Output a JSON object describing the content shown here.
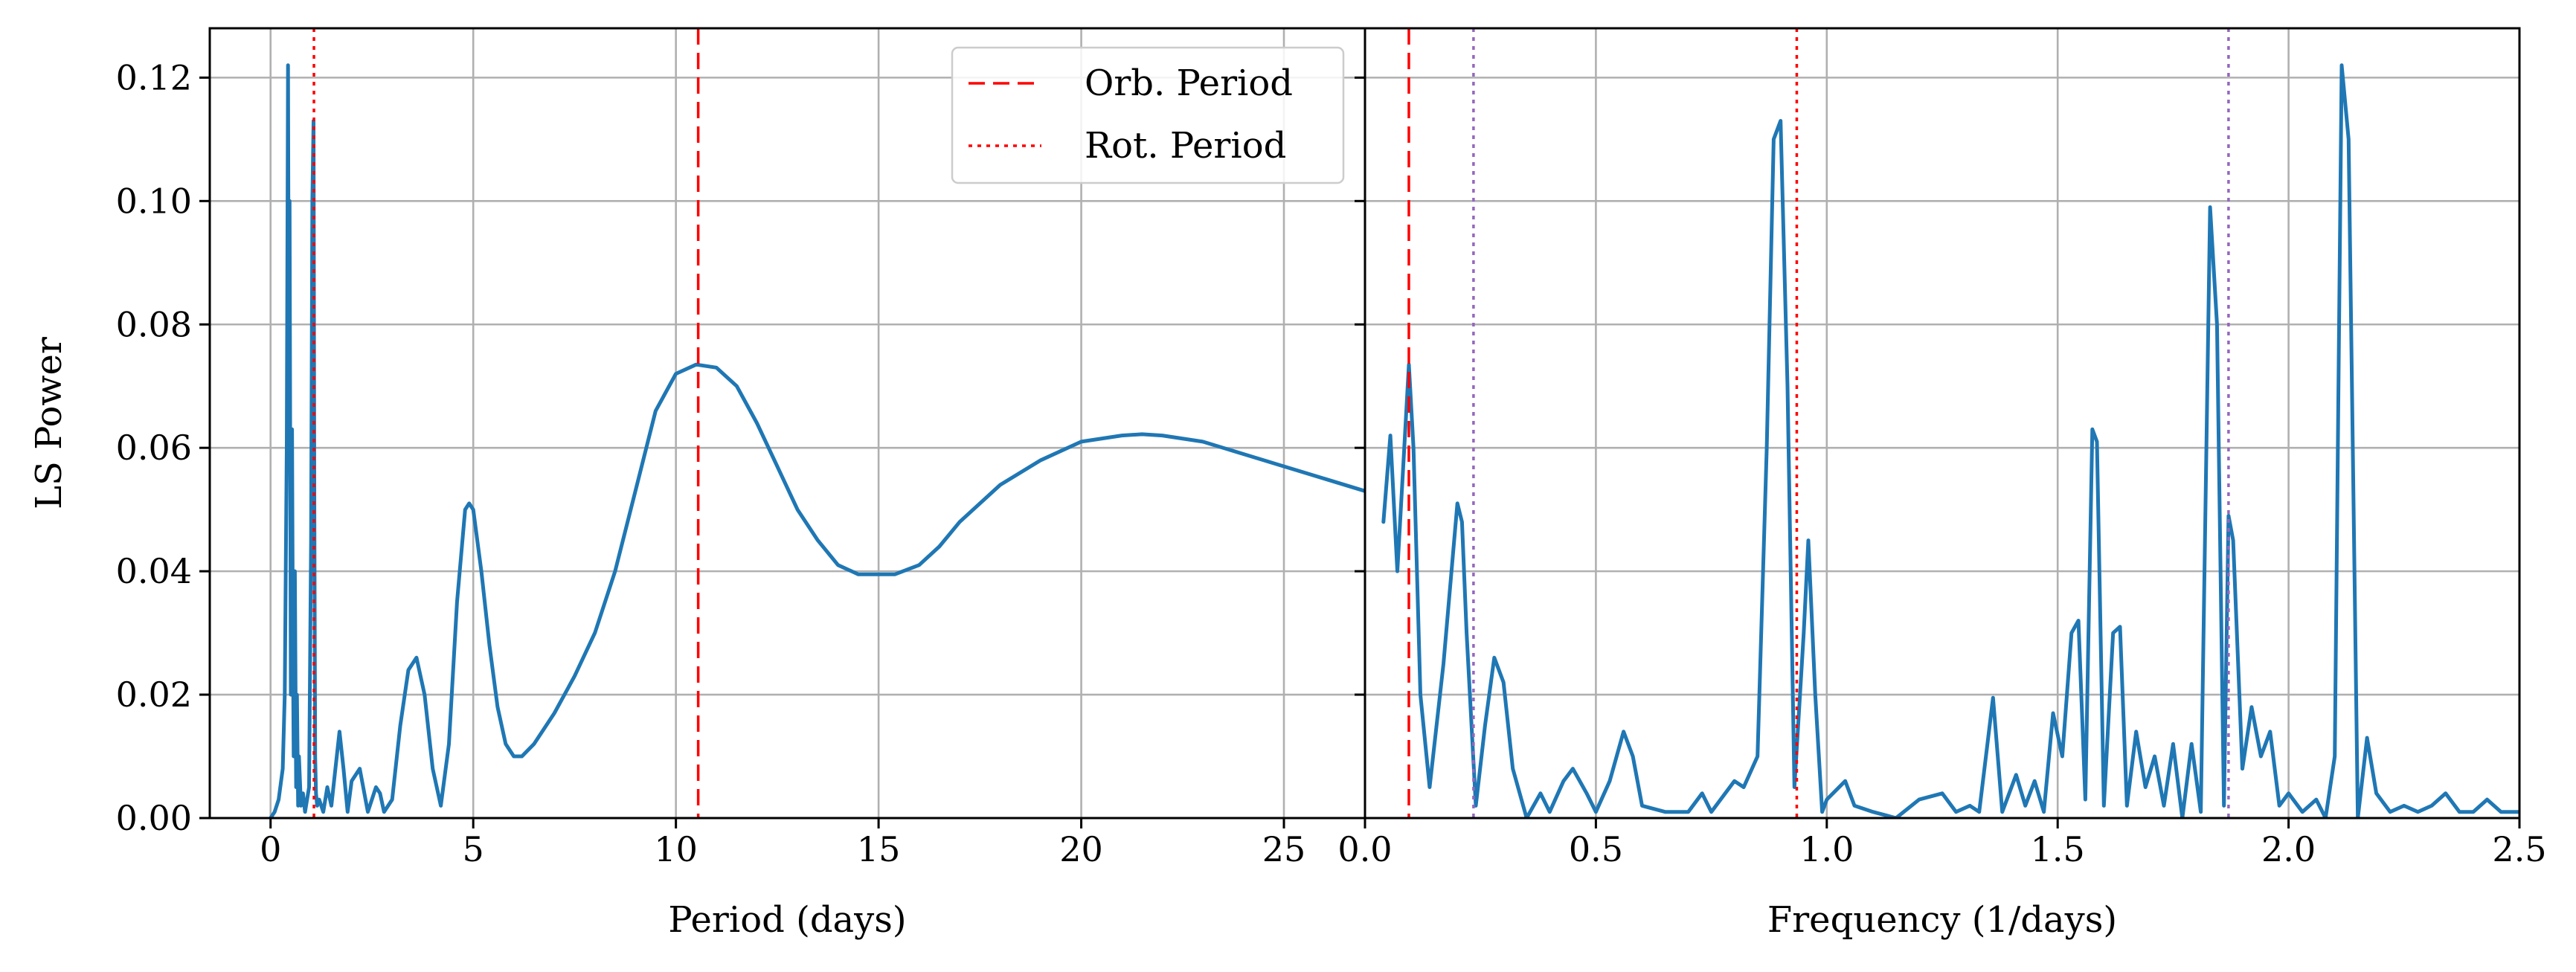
{
  "colors": {
    "series": "#1f77b4",
    "orb_period": "#ff0000",
    "rot_period": "#ff0000",
    "alias_marker": "#9467bd",
    "grid": "#b0b0b0"
  },
  "legend": {
    "placement": "top-right of left panel",
    "items": [
      {
        "label": "Orb. Period",
        "style": "dashed",
        "color": "#ff0000"
      },
      {
        "label": "Rot. Period",
        "style": "dotted",
        "color": "#ff0000"
      }
    ]
  },
  "chart_data": [
    {
      "type": "line",
      "panel": "left",
      "xlabel": "Period (days)",
      "ylabel": "LS Power",
      "xlim": [
        -1.5,
        27
      ],
      "ylim": [
        0,
        0.128
      ],
      "xticks": [
        0,
        5,
        10,
        15,
        20,
        25
      ],
      "xtick_labels": [
        "0",
        "5",
        "10",
        "15",
        "20",
        "25"
      ],
      "yticks": [
        0,
        0.02,
        0.04,
        0.06,
        0.08,
        0.1,
        0.12
      ],
      "ytick_labels": [
        "0.00",
        "0.02",
        "0.04",
        "0.06",
        "0.08",
        "0.10",
        "0.12"
      ],
      "grid": true,
      "vlines": [
        {
          "name": "Orb. Period",
          "x": 10.55,
          "style": "dashed",
          "color": "#ff0000"
        },
        {
          "name": "Rot. Period",
          "x": 1.07,
          "style": "dotted",
          "color": "#ff0000"
        }
      ],
      "series": [
        {
          "x": [
            0.0,
            0.1,
            0.2,
            0.3,
            0.35,
            0.4,
            0.43,
            0.45,
            0.47,
            0.5,
            0.53,
            0.55,
            0.57,
            0.6,
            0.63,
            0.65,
            0.68,
            0.7,
            0.75,
            0.8,
            0.85,
            0.9,
            0.95,
            1.0,
            1.03,
            1.06,
            1.08,
            1.1,
            1.12,
            1.15,
            1.2,
            1.3,
            1.4,
            1.5,
            1.6,
            1.7,
            1.8,
            1.9,
            2.0,
            2.2,
            2.4,
            2.6,
            2.7,
            2.8,
            3.0,
            3.2,
            3.4,
            3.6,
            3.8,
            4.0,
            4.2,
            4.4,
            4.6,
            4.8,
            4.9,
            5.0,
            5.2,
            5.4,
            5.6,
            5.8,
            6.0,
            6.2,
            6.5,
            7.0,
            7.5,
            8.0,
            8.5,
            9.0,
            9.5,
            10.0,
            10.5,
            11.0,
            11.5,
            12.0,
            12.5,
            13.0,
            13.5,
            14.0,
            14.5,
            15.0,
            15.4,
            16.0,
            16.5,
            17.0,
            18.0,
            19.0,
            20.0,
            21.0,
            21.5,
            22.0,
            23.0,
            24.0,
            25.0,
            26.0,
            27.0
          ],
          "y": [
            0.0,
            0.001,
            0.003,
            0.008,
            0.02,
            0.06,
            0.122,
            0.07,
            0.1,
            0.02,
            0.063,
            0.03,
            0.01,
            0.04,
            0.005,
            0.02,
            0.002,
            0.01,
            0.002,
            0.004,
            0.001,
            0.003,
            0.005,
            0.045,
            0.1,
            0.113,
            0.05,
            0.01,
            0.004,
            0.002,
            0.003,
            0.001,
            0.005,
            0.002,
            0.008,
            0.014,
            0.008,
            0.001,
            0.006,
            0.008,
            0.001,
            0.005,
            0.004,
            0.001,
            0.003,
            0.015,
            0.024,
            0.026,
            0.02,
            0.008,
            0.002,
            0.012,
            0.035,
            0.05,
            0.051,
            0.05,
            0.04,
            0.028,
            0.018,
            0.012,
            0.01,
            0.01,
            0.012,
            0.017,
            0.023,
            0.03,
            0.04,
            0.053,
            0.066,
            0.072,
            0.0735,
            0.073,
            0.07,
            0.064,
            0.057,
            0.05,
            0.045,
            0.041,
            0.0395,
            0.0395,
            0.0395,
            0.041,
            0.044,
            0.048,
            0.054,
            0.058,
            0.061,
            0.062,
            0.0622,
            0.062,
            0.061,
            0.059,
            0.057,
            0.055,
            0.053
          ]
        }
      ]
    },
    {
      "type": "line",
      "panel": "right",
      "xlabel": "Frequency (1/days)",
      "ylabel": "",
      "xlim": [
        0,
        2.5
      ],
      "ylim": [
        0,
        0.128
      ],
      "xticks": [
        0,
        0.5,
        1,
        1.5,
        2,
        2.5
      ],
      "xtick_labels": [
        "0.0",
        "0.5",
        "1.0",
        "1.5",
        "2.0",
        "2.5"
      ],
      "yticks": [
        0,
        0.02,
        0.04,
        0.06,
        0.08,
        0.1,
        0.12
      ],
      "grid": true,
      "vlines": [
        {
          "name": "Orb. Period",
          "x": 0.095,
          "style": "dashed",
          "color": "#ff0000"
        },
        {
          "x": 0.235,
          "style": "dotted",
          "color": "#9467bd"
        },
        {
          "name": "Rot. Period",
          "x": 0.935,
          "style": "dotted",
          "color": "#ff0000"
        },
        {
          "x": 1.87,
          "style": "dotted",
          "color": "#9467bd"
        }
      ],
      "series": [
        {
          "x": [
            0.04,
            0.055,
            0.07,
            0.085,
            0.095,
            0.105,
            0.12,
            0.14,
            0.17,
            0.2,
            0.21,
            0.22,
            0.24,
            0.26,
            0.28,
            0.3,
            0.32,
            0.35,
            0.38,
            0.4,
            0.43,
            0.45,
            0.48,
            0.5,
            0.53,
            0.56,
            0.58,
            0.6,
            0.65,
            0.7,
            0.73,
            0.75,
            0.8,
            0.82,
            0.85,
            0.87,
            0.885,
            0.9,
            0.915,
            0.93,
            0.95,
            0.96,
            0.975,
            0.99,
            1.0,
            1.04,
            1.06,
            1.1,
            1.15,
            1.2,
            1.25,
            1.28,
            1.31,
            1.33,
            1.36,
            1.38,
            1.41,
            1.43,
            1.45,
            1.47,
            1.49,
            1.51,
            1.53,
            1.545,
            1.56,
            1.575,
            1.585,
            1.6,
            1.62,
            1.635,
            1.65,
            1.67,
            1.69,
            1.71,
            1.73,
            1.75,
            1.77,
            1.79,
            1.81,
            1.83,
            1.845,
            1.86,
            1.87,
            1.88,
            1.9,
            1.92,
            1.94,
            1.96,
            1.98,
            2.0,
            2.03,
            2.06,
            2.08,
            2.1,
            2.115,
            2.13,
            2.15,
            2.17,
            2.19,
            2.22,
            2.25,
            2.28,
            2.31,
            2.34,
            2.37,
            2.4,
            2.43,
            2.46,
            2.5
          ],
          "y": [
            0.048,
            0.062,
            0.04,
            0.06,
            0.0735,
            0.06,
            0.02,
            0.005,
            0.025,
            0.051,
            0.048,
            0.03,
            0.002,
            0.015,
            0.026,
            0.022,
            0.008,
            0.0,
            0.004,
            0.001,
            0.006,
            0.008,
            0.004,
            0.001,
            0.006,
            0.014,
            0.01,
            0.002,
            0.001,
            0.001,
            0.004,
            0.001,
            0.006,
            0.005,
            0.01,
            0.06,
            0.11,
            0.113,
            0.07,
            0.005,
            0.03,
            0.045,
            0.02,
            0.001,
            0.003,
            0.006,
            0.002,
            0.001,
            0.0,
            0.003,
            0.004,
            0.001,
            0.002,
            0.001,
            0.0195,
            0.001,
            0.007,
            0.002,
            0.006,
            0.001,
            0.017,
            0.01,
            0.03,
            0.032,
            0.003,
            0.063,
            0.061,
            0.002,
            0.03,
            0.031,
            0.002,
            0.014,
            0.005,
            0.01,
            0.002,
            0.012,
            0.0,
            0.012,
            0.001,
            0.099,
            0.08,
            0.002,
            0.049,
            0.045,
            0.008,
            0.018,
            0.01,
            0.014,
            0.002,
            0.004,
            0.001,
            0.003,
            0.0,
            0.01,
            0.122,
            0.11,
            0.0,
            0.013,
            0.004,
            0.001,
            0.002,
            0.001,
            0.002,
            0.004,
            0.001,
            0.001,
            0.003,
            0.001,
            0.001
          ]
        }
      ]
    }
  ]
}
